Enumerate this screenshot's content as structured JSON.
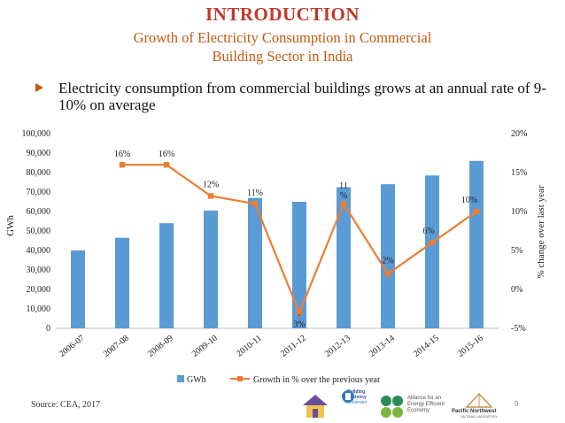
{
  "header": {
    "title": "INTRODUCTION",
    "subtitle_line1": "Growth of Electricity Consumption in Commercial",
    "subtitle_line2": "Building Sector in India"
  },
  "bullet": {
    "text": "Electricity consumption from commercial buildings grows at an annual rate of 9-10% on average"
  },
  "chart_data": {
    "type": "bar",
    "categories": [
      "2006-07",
      "2007-08",
      "2008-09",
      "2009-10",
      "2010-11",
      "2011-12",
      "2012-13",
      "2013-14",
      "2014-15",
      "2015-16"
    ],
    "series": [
      {
        "name": "GWh",
        "type": "bar",
        "axis": "left",
        "color": "#5B9BD5",
        "values": [
          40000,
          46500,
          54000,
          60500,
          67000,
          65000,
          72500,
          74000,
          78500,
          86000
        ]
      },
      {
        "name": "Growth in % over the previous year",
        "type": "line",
        "axis": "right",
        "color": "#ED7D31",
        "values": [
          null,
          16,
          16,
          12,
          11,
          -3,
          11,
          2,
          6,
          10
        ]
      }
    ],
    "data_labels": [
      "",
      "16%",
      "16%",
      "12%",
      "11%",
      "-3%",
      "11%",
      "2%",
      "6%",
      "10%"
    ],
    "ylabel": "GWh",
    "y2label": "% change over last year",
    "ylim": [
      0,
      100000
    ],
    "y2lim": [
      -5,
      20
    ],
    "yticks": [
      "0",
      "10,000",
      "20,000",
      "30,000",
      "40,000",
      "50,000",
      "60,000",
      "70,000",
      "80,000",
      "90,000",
      "100,000"
    ],
    "y2ticks": [
      "-5%",
      "0%",
      "5%",
      "10%",
      "15%",
      "20%"
    ],
    "legend_position": "bottom"
  },
  "footer": {
    "source": "Source: CEA, 2017",
    "page": "9"
  },
  "logos": {
    "bee_line1": "Building",
    "bee_line2": "Efficiency",
    "bee_line3": "Accelerator",
    "aeee_line1": "Alliance for an",
    "aeee_line2": "Energy Efficient",
    "aeee_line3": "Economy",
    "pnnl_line1": "Pacific Northwest",
    "pnnl_line2": "NATIONAL LABORATORY"
  }
}
